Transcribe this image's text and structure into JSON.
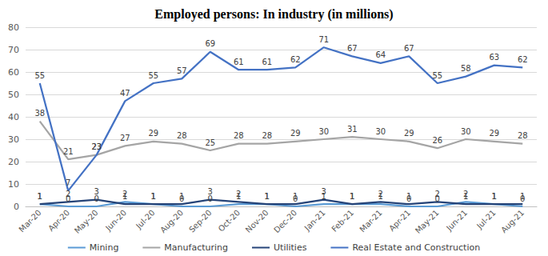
{
  "chart_data": {
    "type": "line",
    "title": "Employed persons: In industry (in millions)",
    "categories": [
      "Mar-20",
      "Apr-20",
      "May-20",
      "Jun-20",
      "Jul-20",
      "Aug-20",
      "Sep-20",
      "Oct-20",
      "Nov-20",
      "Dec-20",
      "Jan-21",
      "Feb-21",
      "Mar-21",
      "Apr-21",
      "May-21",
      "Jun-21",
      "Jul-21",
      "Aug-21"
    ],
    "series": [
      {
        "name": "Mining",
        "color": "#5b9bd5",
        "values": [
          1,
          0,
          0,
          2,
          1,
          0,
          0,
          1,
          1,
          0,
          1,
          1,
          1,
          0,
          0,
          2,
          1,
          0
        ]
      },
      {
        "name": "Manufacturing",
        "color": "#a5a5a5",
        "values": [
          38,
          21,
          23,
          27,
          29,
          28,
          25,
          28,
          28,
          29,
          30,
          31,
          30,
          29,
          26,
          30,
          29,
          28
        ]
      },
      {
        "name": "Utilities",
        "color": "#264478",
        "values": [
          1,
          2,
          3,
          1,
          1,
          1,
          3,
          2,
          1,
          1,
          3,
          1,
          2,
          1,
          2,
          1,
          1,
          1
        ]
      },
      {
        "name": "Real Estate and Construction",
        "color": "#4472c4",
        "values": [
          55,
          7,
          23,
          47,
          55,
          57,
          69,
          61,
          61,
          62,
          71,
          67,
          64,
          67,
          55,
          58,
          63,
          62
        ]
      }
    ],
    "ylim": [
      0,
      80
    ],
    "yticks": [
      0,
      10,
      20,
      30,
      40,
      50,
      60,
      70,
      80
    ],
    "grid": true,
    "legend": "bottom",
    "data_labels": true
  }
}
